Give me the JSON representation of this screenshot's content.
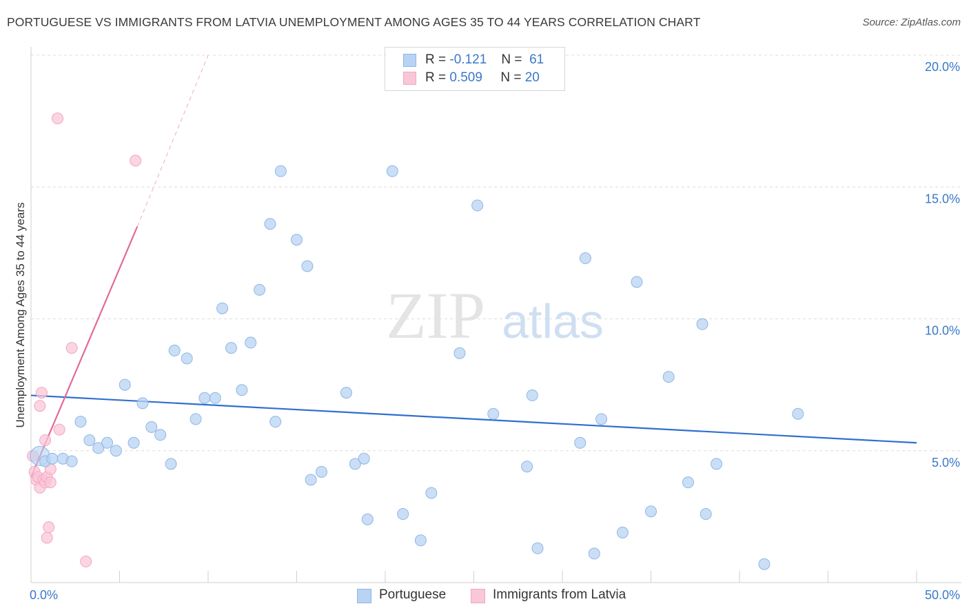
{
  "title": "PORTUGUESE VS IMMIGRANTS FROM LATVIA UNEMPLOYMENT AMONG AGES 35 TO 44 YEARS CORRELATION CHART",
  "source": "Source: ZipAtlas.com",
  "legend": {
    "rows": [
      {
        "r_label": "R =",
        "r_value": "-0.121",
        "n_label": "N =",
        "n_value": "61"
      },
      {
        "r_label": "R =",
        "r_value": "0.509",
        "n_label": "N =",
        "n_value": "20"
      }
    ]
  },
  "watermark": {
    "zip": "ZIP",
    "atlas": "atlas"
  },
  "colors": {
    "portuguese_fill": "#b8d3f3",
    "portuguese_stroke": "#8fb6e6",
    "portuguese_line": "#2f6fcf",
    "latvia_fill": "#f9c7d7",
    "latvia_stroke": "#f2a6bf",
    "latvia_line": "#e0699a",
    "axis_text": "#3a78c9"
  },
  "chart_data": {
    "type": "scatter",
    "title": "PORTUGUESE VS IMMIGRANTS FROM LATVIA UNEMPLOYMENT AMONG AGES 35 TO 44 YEARS CORRELATION CHART",
    "xlabel": "",
    "ylabel": "Unemployment Among Ages 35 to 44 years",
    "xlim": [
      0,
      50
    ],
    "ylim": [
      0,
      20
    ],
    "x_tick_labels": [
      "0.0%",
      "50.0%"
    ],
    "y_ticks": [
      5,
      10,
      15,
      20
    ],
    "y_tick_labels": [
      "5.0%",
      "10.0%",
      "15.0%",
      "20.0%"
    ],
    "grid": true,
    "series": [
      {
        "name": "Portuguese",
        "r": -0.121,
        "n": 61,
        "trend": {
          "x": [
            0.0,
            50.0
          ],
          "y": [
            7.1,
            5.3
          ]
        },
        "points": [
          [
            0.5,
            4.8
          ],
          [
            0.8,
            4.6
          ],
          [
            1.2,
            4.7
          ],
          [
            1.8,
            4.7
          ],
          [
            2.3,
            4.6
          ],
          [
            2.8,
            6.1
          ],
          [
            3.3,
            5.4
          ],
          [
            3.8,
            5.1
          ],
          [
            4.3,
            5.3
          ],
          [
            4.8,
            5.0
          ],
          [
            5.3,
            7.5
          ],
          [
            5.8,
            5.3
          ],
          [
            6.3,
            6.8
          ],
          [
            6.8,
            5.9
          ],
          [
            7.3,
            5.6
          ],
          [
            7.9,
            4.5
          ],
          [
            8.1,
            8.8
          ],
          [
            8.8,
            8.5
          ],
          [
            9.3,
            6.2
          ],
          [
            9.8,
            7.0
          ],
          [
            10.4,
            7.0
          ],
          [
            10.8,
            10.4
          ],
          [
            11.3,
            8.9
          ],
          [
            11.9,
            7.3
          ],
          [
            12.4,
            9.1
          ],
          [
            12.9,
            11.1
          ],
          [
            13.5,
            13.6
          ],
          [
            13.8,
            6.1
          ],
          [
            14.1,
            15.6
          ],
          [
            15.0,
            13.0
          ],
          [
            15.6,
            12.0
          ],
          [
            15.8,
            3.9
          ],
          [
            16.4,
            4.2
          ],
          [
            17.8,
            7.2
          ],
          [
            18.3,
            4.5
          ],
          [
            18.8,
            4.7
          ],
          [
            19.0,
            2.4
          ],
          [
            20.4,
            15.6
          ],
          [
            21.0,
            2.6
          ],
          [
            22.0,
            1.6
          ],
          [
            22.6,
            3.4
          ],
          [
            24.2,
            8.7
          ],
          [
            25.2,
            14.3
          ],
          [
            26.1,
            6.4
          ],
          [
            28.0,
            4.4
          ],
          [
            28.3,
            7.1
          ],
          [
            28.6,
            1.3
          ],
          [
            31.0,
            5.3
          ],
          [
            31.3,
            12.3
          ],
          [
            31.8,
            1.1
          ],
          [
            32.2,
            6.2
          ],
          [
            33.4,
            1.9
          ],
          [
            34.2,
            11.4
          ],
          [
            35.0,
            2.7
          ],
          [
            36.0,
            7.8
          ],
          [
            37.1,
            3.8
          ],
          [
            37.9,
            9.8
          ],
          [
            38.1,
            2.6
          ],
          [
            38.7,
            4.5
          ],
          [
            41.4,
            0.7
          ],
          [
            43.3,
            6.4
          ]
        ]
      },
      {
        "name": "Immigrants from Latvia",
        "r": 0.509,
        "n": 20,
        "trend": {
          "x": [
            0.0,
            6.0
          ],
          "y": [
            4.0,
            13.5
          ],
          "extended_to": [
            10.0,
            20.0
          ]
        },
        "points": [
          [
            0.1,
            4.8
          ],
          [
            0.2,
            4.2
          ],
          [
            0.3,
            3.9
          ],
          [
            0.4,
            4.0
          ],
          [
            0.5,
            6.7
          ],
          [
            0.5,
            3.6
          ],
          [
            0.6,
            7.2
          ],
          [
            0.7,
            3.9
          ],
          [
            0.8,
            3.8
          ],
          [
            0.9,
            4.0
          ],
          [
            0.8,
            5.4
          ],
          [
            0.9,
            1.7
          ],
          [
            1.0,
            2.1
          ],
          [
            1.1,
            4.3
          ],
          [
            1.1,
            3.8
          ],
          [
            1.5,
            17.6
          ],
          [
            1.6,
            5.8
          ],
          [
            2.3,
            8.9
          ],
          [
            3.1,
            0.8
          ],
          [
            5.9,
            16.0
          ]
        ]
      }
    ]
  }
}
